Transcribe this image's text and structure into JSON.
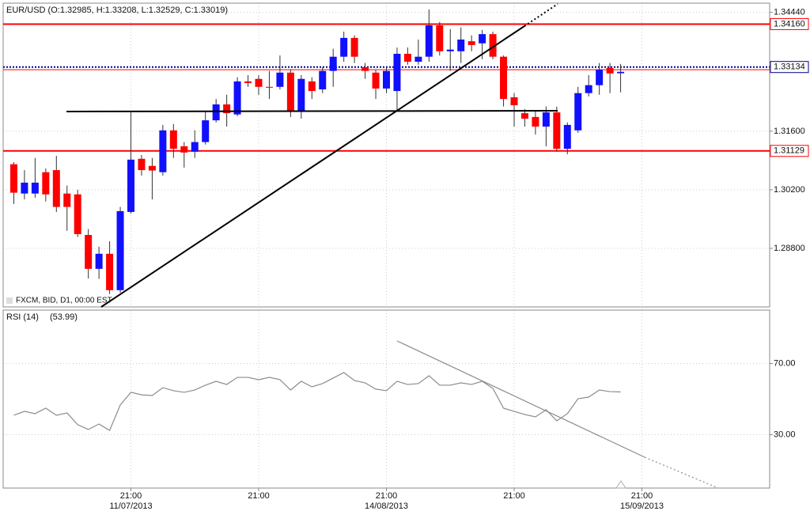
{
  "chart_data": [
    {
      "type": "candlestick",
      "title": "EUR/USD (O:1.32985, H:1.33208, L:1.32529, C:1.33019)",
      "annotation": "FXCM, BID, D1, 00:00 EST",
      "up_color": "#1010ff",
      "down_color": "#ff0000",
      "open": [
        1.3081,
        1.3011,
        1.3011,
        1.3062,
        1.3067,
        1.3011,
        1.3009,
        1.2912,
        1.2831,
        1.2867,
        1.278,
        1.2967,
        1.3094,
        1.3077,
        1.3062,
        1.3162,
        1.3124,
        1.3111,
        1.3134,
        1.3186,
        1.3224,
        1.32,
        1.3279,
        1.3285,
        1.3266,
        1.3266,
        1.33,
        1.3209,
        1.3279,
        1.326,
        1.3304,
        1.3338,
        1.3383,
        1.3313,
        1.33,
        1.3262,
        1.3256,
        1.3345,
        1.3326,
        1.3338,
        1.3413,
        1.3351,
        1.3351,
        1.3375,
        1.337,
        1.3392,
        1.3338,
        1.3241,
        1.3203,
        1.3194,
        1.3171,
        1.3205,
        1.3118,
        1.3162,
        1.3251,
        1.327,
        1.3311,
        1.32985
      ],
      "high": [
        1.3086,
        1.3067,
        1.3096,
        1.3071,
        1.3101,
        1.303,
        1.302,
        1.2926,
        1.2884,
        1.2897,
        1.2979,
        1.3205,
        1.3103,
        1.3096,
        1.3175,
        1.3177,
        1.3134,
        1.3162,
        1.3209,
        1.3237,
        1.3247,
        1.3289,
        1.3294,
        1.3294,
        1.3304,
        1.3341,
        1.3307,
        1.3294,
        1.3289,
        1.3313,
        1.3357,
        1.3398,
        1.3389,
        1.3323,
        1.3307,
        1.3313,
        1.336,
        1.336,
        1.3379,
        1.3451,
        1.3421,
        1.3404,
        1.3408,
        1.3389,
        1.3402,
        1.3398,
        1.3341,
        1.3251,
        1.3213,
        1.3209,
        1.3219,
        1.3219,
        1.3181,
        1.3266,
        1.3294,
        1.3323,
        1.3323,
        1.33208
      ],
      "low": [
        1.2986,
        1.2997,
        1.3001,
        1.2992,
        1.2967,
        1.2922,
        1.2907,
        1.2808,
        1.2807,
        1.2771,
        1.2774,
        1.2963,
        1.3054,
        1.2997,
        1.3054,
        1.3096,
        1.3073,
        1.3096,
        1.3128,
        1.3181,
        1.3171,
        1.3196,
        1.3266,
        1.3247,
        1.3237,
        1.326,
        1.3194,
        1.319,
        1.3237,
        1.3251,
        1.3266,
        1.3326,
        1.3323,
        1.3285,
        1.3237,
        1.3251,
        1.3209,
        1.3319,
        1.3319,
        1.3326,
        1.3341,
        1.3304,
        1.3323,
        1.3351,
        1.3332,
        1.3332,
        1.3219,
        1.3171,
        1.3171,
        1.3152,
        1.3124,
        1.3111,
        1.3105,
        1.3156,
        1.3243,
        1.3247,
        1.3251,
        1.32529
      ],
      "close": [
        1.3013,
        1.3037,
        1.3037,
        1.3009,
        1.2979,
        1.2979,
        1.2914,
        1.2831,
        1.2867,
        1.278,
        1.2969,
        1.3092,
        1.3067,
        1.3066,
        1.3162,
        1.3118,
        1.3109,
        1.3134,
        1.3186,
        1.3224,
        1.3203,
        1.3279,
        1.3275,
        1.3266,
        1.3264,
        1.33,
        1.3209,
        1.3285,
        1.3256,
        1.3304,
        1.3338,
        1.3383,
        1.3338,
        1.3304,
        1.3262,
        1.3304,
        1.3345,
        1.3326,
        1.3338,
        1.3413,
        1.3351,
        1.3355,
        1.3379,
        1.3366,
        1.3392,
        1.3338,
        1.3237,
        1.3222,
        1.319,
        1.3171,
        1.3205,
        1.3118,
        1.3175,
        1.3251,
        1.327,
        1.3307,
        1.3298,
        1.33019
      ],
      "xlim": [
        -1,
        71
      ],
      "ylim": [
        1.274,
        1.3466
      ],
      "yticks": [
        {
          "value": 1.3444,
          "label": "1.34440"
        },
        {
          "value": 1.316,
          "label": "1.31600"
        },
        {
          "value": 1.302,
          "label": "1.30200"
        },
        {
          "value": 1.288,
          "label": "1.28800"
        }
      ],
      "levels": [
        {
          "value": 1.3416,
          "label": "1.34160",
          "color": "#ff0000",
          "style": "solid"
        },
        {
          "value": 1.3307,
          "color": "#ff0000",
          "style": "thin"
        },
        {
          "value": 1.33134,
          "label": "1.33134",
          "color": "#00008b",
          "style": "dotted"
        },
        {
          "value": 1.31129,
          "label": "1.31129",
          "color": "#ff0000",
          "style": "solid"
        }
      ],
      "grid": true
    },
    {
      "type": "line",
      "title": "RSI (14)",
      "current_label": "(53.99)",
      "color": "#8c8c8c",
      "values": [
        40.9,
        43.1,
        41.8,
        44.9,
        40.9,
        42.2,
        35.6,
        32.9,
        36.0,
        32.4,
        46.7,
        53.8,
        52.4,
        52.0,
        56.4,
        54.7,
        53.8,
        55.1,
        57.8,
        60.0,
        58.2,
        62.2,
        62.2,
        60.9,
        62.2,
        60.9,
        55.1,
        60.0,
        56.9,
        58.7,
        61.8,
        64.9,
        60.4,
        59.1,
        55.6,
        54.7,
        60.0,
        58.2,
        58.7,
        63.1,
        57.8,
        57.8,
        59.1,
        58.2,
        60.0,
        56.0,
        44.9,
        43.1,
        41.3,
        40.0,
        44.0,
        37.8,
        41.8,
        50.2,
        51.1,
        55.1,
        54.2,
        53.99
      ],
      "xlim": [
        -1,
        71
      ],
      "ylim": [
        0,
        100
      ],
      "yticks": [
        {
          "value": 70,
          "label": "70.00"
        },
        {
          "value": 30,
          "label": "30.00"
        }
      ],
      "xticks": [
        {
          "value": 11,
          "label": "21:00"
        },
        {
          "value": 23,
          "label": "21:00"
        },
        {
          "value": 35,
          "label": "21:00"
        },
        {
          "value": 47,
          "label": "21:00"
        },
        {
          "value": 59,
          "label": "21:00"
        }
      ],
      "x_date_labels": [
        {
          "value": 11,
          "label": "11/07/2013"
        },
        {
          "value": 35,
          "label": "14/08/2013"
        },
        {
          "value": 59,
          "label": "15/09/2013"
        }
      ],
      "grid": true
    }
  ]
}
